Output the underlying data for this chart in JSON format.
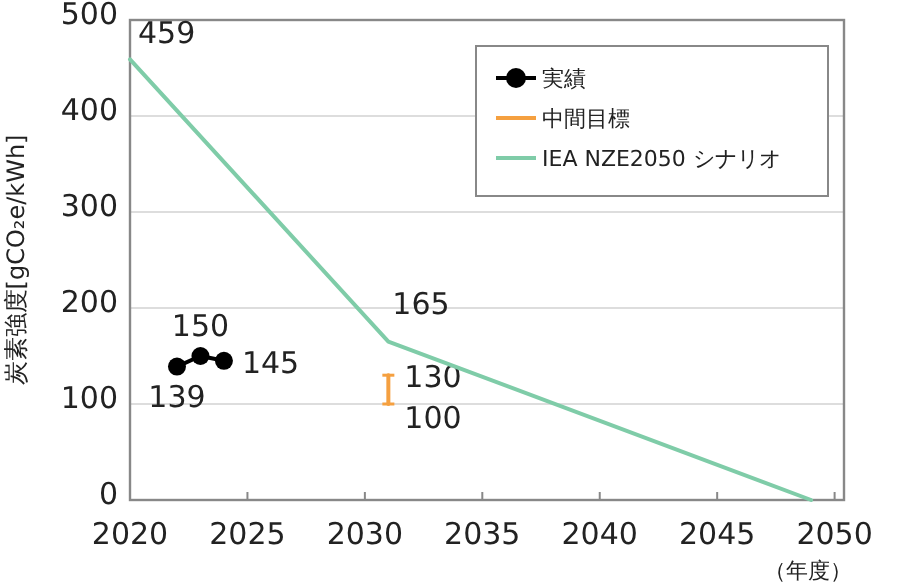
{
  "chart_data": {
    "type": "line",
    "xlabel": "（年度）",
    "ylabel": "炭素強度[gCO₂e/kWh]",
    "xlim": [
      2020,
      2050.4
    ],
    "ylim": [
      0,
      500
    ],
    "xticks": [
      2020,
      2025,
      2030,
      2035,
      2040,
      2045,
      2050
    ],
    "yticks": [
      0,
      100,
      200,
      300,
      400,
      500
    ],
    "grid": "y",
    "legend": "top right",
    "series": [
      {
        "name": "実績",
        "color": "#000000",
        "marker": "circle",
        "x": [
          2022,
          2023,
          2024
        ],
        "values": [
          139,
          150,
          145
        ],
        "value_labels": [
          "139",
          "150",
          "145"
        ]
      },
      {
        "name": "中間目標",
        "color": "#f5a040",
        "marker": "none",
        "x": [
          2031,
          2031
        ],
        "values": [
          100,
          130
        ],
        "value_labels": [
          "100",
          "130"
        ]
      },
      {
        "name": "IEA NZE2050 シナリオ",
        "color": "#7fcca8",
        "marker": "none",
        "x": [
          2020,
          2031,
          2049
        ],
        "values": [
          459,
          165,
          0
        ],
        "value_labels": [
          "459",
          "165",
          null
        ]
      }
    ]
  }
}
